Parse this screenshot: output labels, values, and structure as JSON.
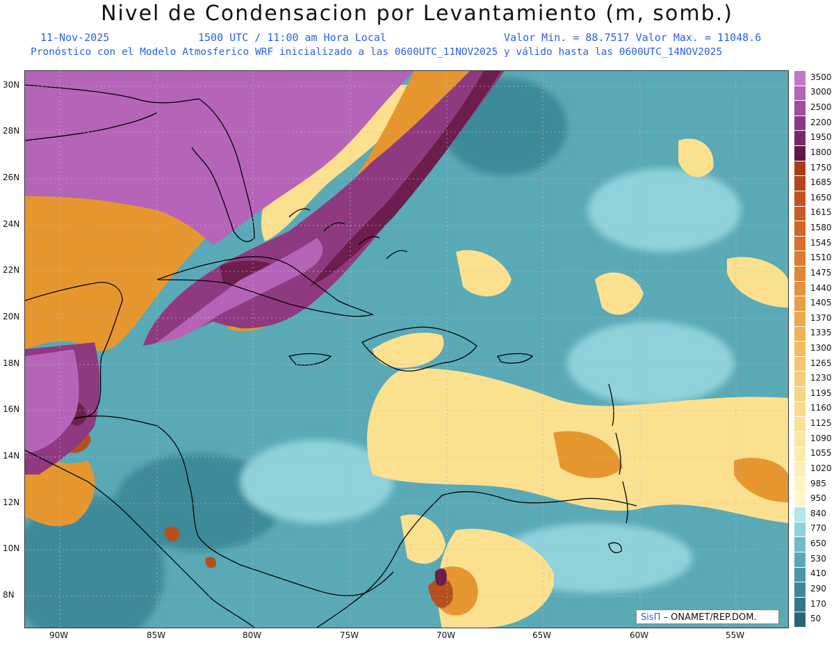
{
  "header": {
    "title": "Nivel de Condensacion por Levantamiento (m, somb.)",
    "date": "11-Nov-2025",
    "time": "1500 UTC / 11:00 am Hora Local",
    "min_max": "Valor Min. = 88.7517  Valor Max. = 11048.6",
    "model_line": "Pronóstico con el Modelo Atmosferico WRF inicializado a las 0600UTC_11NOV2025 y válido hasta las  0600UTC_14NOV2025"
  },
  "map": {
    "lon_labels": [
      "90W",
      "85W",
      "80W",
      "75W",
      "70W",
      "65W",
      "60W",
      "55W"
    ],
    "lat_labels": [
      "30N",
      "28N",
      "26N",
      "24N",
      "22N",
      "20N",
      "18N",
      "16N",
      "14N",
      "12N",
      "10N",
      "8N"
    ],
    "colors": {
      "background": "#5aa9b6",
      "low": "#3e8a9a",
      "light": "#8fd2da",
      "yellow": "#fbe08f",
      "orange": "#e6962f",
      "rust": "#b8501c",
      "dark": "#6e1e4c",
      "plum": "#8f3a80",
      "violet": "#b564b8",
      "coast": "#000000"
    }
  },
  "legend": {
    "labels": [
      "3500",
      "3000",
      "2500",
      "2200",
      "1950",
      "1800",
      "1750",
      "1685",
      "1650",
      "1615",
      "1580",
      "1545",
      "1510",
      "1475",
      "1440",
      "1405",
      "1370",
      "1335",
      "1300",
      "1265",
      "1230",
      "1195",
      "1160",
      "1125",
      "1090",
      "1055",
      "1020",
      "985",
      "950",
      "840",
      "770",
      "650",
      "530",
      "410",
      "290",
      "170",
      "50"
    ],
    "colors": [
      "#c07ac4",
      "#b564b8",
      "#a24c9e",
      "#8c3784",
      "#76286a",
      "#5e1848",
      "#a83c16",
      "#b5461a",
      "#c0521e",
      "#c85c22",
      "#d06626",
      "#d7702b",
      "#dd7b31",
      "#e28637",
      "#e6913e",
      "#ea9c46",
      "#eea74f",
      "#f1b158",
      "#f4bb62",
      "#f6c46c",
      "#f8cc76",
      "#f9d480",
      "#fadb8a",
      "#fbe195",
      "#fce6a0",
      "#fdebab",
      "#fdefb6",
      "#fef3c1",
      "#fef7cd",
      "#b6e5ea",
      "#8fd2da",
      "#6dbcc6",
      "#58a9b4",
      "#4a98a5",
      "#3e8796",
      "#347685",
      "#2a6574"
    ]
  },
  "credit": {
    "sis": "SisΠ",
    "text": " – ONAMET/REP.DOM."
  }
}
